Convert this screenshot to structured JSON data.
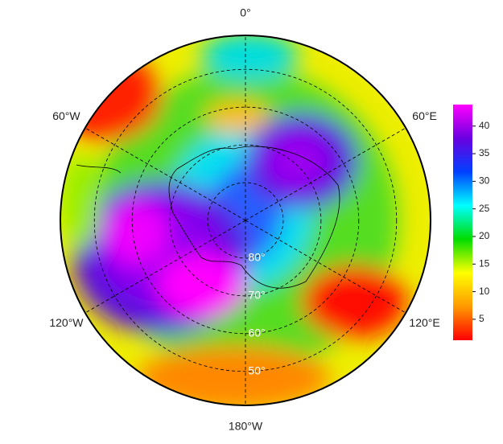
{
  "chart_data": {
    "type": "polar-map",
    "direction_ticks": [
      {
        "value": 0,
        "label": "0°"
      },
      {
        "value": 60,
        "label": "60°E"
      },
      {
        "value": 120,
        "label": "120°E"
      },
      {
        "value": 180,
        "label": "180°W"
      },
      {
        "value": -120,
        "label": "120°W"
      },
      {
        "value": -60,
        "label": "60°W"
      }
    ],
    "latitude_lim": [
      90,
      41
    ],
    "latitude_ticks": [
      {
        "value": 80,
        "label": "80°"
      },
      {
        "value": 70,
        "label": "70°"
      },
      {
        "value": 60,
        "label": "60°"
      },
      {
        "value": 50,
        "label": "50°"
      }
    ],
    "colorbar": {
      "lim": [
        1.2,
        43.9
      ],
      "ticks": [
        5,
        10,
        15,
        20,
        25,
        30,
        35,
        40
      ],
      "colors": [
        "#ff0000",
        "#ff9900",
        "#ffff00",
        "#00dd00",
        "#00ffff",
        "#0040ff",
        "#6a00e0",
        "#ff00ff"
      ]
    }
  }
}
